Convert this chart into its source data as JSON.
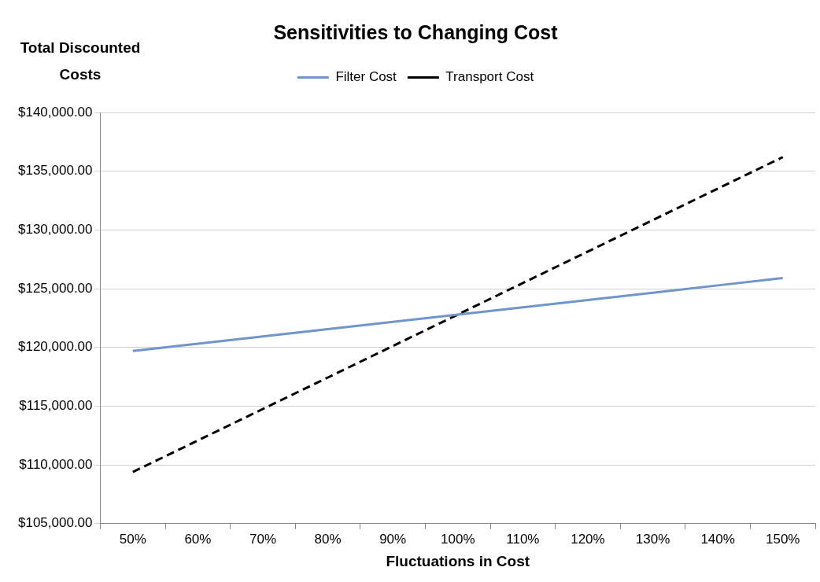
{
  "chart_data": {
    "type": "line",
    "title": "Sensitivities to Changing Cost",
    "xlabel": "Fluctuations in Cost",
    "ylabel": "Total Discounted Costs",
    "categories": [
      "50%",
      "60%",
      "70%",
      "80%",
      "90%",
      "100%",
      "110%",
      "120%",
      "130%",
      "140%",
      "150%"
    ],
    "series": [
      {
        "name": "Filter Cost",
        "color": "#7094cc",
        "line_style": "solid",
        "values": [
          119700,
          120320,
          120940,
          121560,
          122180,
          122800,
          123420,
          124040,
          124660,
          125280,
          125900
        ]
      },
      {
        "name": "Transport Cost",
        "color": "#000000",
        "line_style": "dashed",
        "values": [
          109400,
          112080,
          114760,
          117440,
          120120,
          122800,
          125480,
          128160,
          130840,
          133520,
          136200
        ]
      }
    ],
    "ylim": [
      105000,
      140000
    ],
    "yticks": [
      {
        "value": 105000,
        "label": "$105,000.00"
      },
      {
        "value": 110000,
        "label": "$110,000.00"
      },
      {
        "value": 115000,
        "label": "$115,000.00"
      },
      {
        "value": 120000,
        "label": "$120,000.00"
      },
      {
        "value": 125000,
        "label": "$125,000.00"
      },
      {
        "value": 130000,
        "label": "$130,000.00"
      },
      {
        "value": 135000,
        "label": "$135,000.00"
      },
      {
        "value": 140000,
        "label": "$140,000.00"
      }
    ],
    "grid": "y",
    "legend": "top",
    "marker": "none"
  }
}
